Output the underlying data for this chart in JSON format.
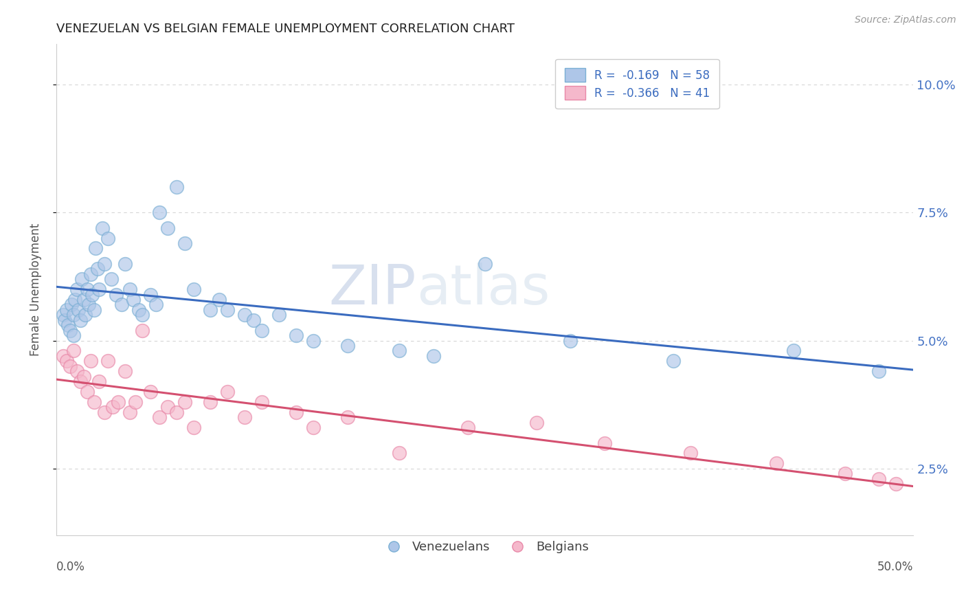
{
  "title": "VENEZUELAN VS BELGIAN FEMALE UNEMPLOYMENT CORRELATION CHART",
  "source": "Source: ZipAtlas.com",
  "ylabel": "Female Unemployment",
  "watermark_zip": "ZIP",
  "watermark_atlas": "atlas",
  "xlim": [
    0.0,
    0.5
  ],
  "ylim": [
    0.012,
    0.108
  ],
  "yticks": [
    0.025,
    0.05,
    0.075,
    0.1
  ],
  "ytick_labels": [
    "2.5%",
    "5.0%",
    "7.5%",
    "10.0%"
  ],
  "legend_blue_r": "-0.169",
  "legend_blue_n": "58",
  "legend_pink_r": "-0.366",
  "legend_pink_n": "41",
  "blue_fill": "#aec6e8",
  "pink_fill": "#f5b8cb",
  "blue_edge": "#7aafd4",
  "pink_edge": "#e888a8",
  "blue_line_color": "#3a6bbf",
  "pink_line_color": "#d45070",
  "title_color": "#222222",
  "source_color": "#999999",
  "axis_label_color": "#555555",
  "right_tick_color": "#4472c4",
  "grid_color": "#cccccc",
  "background_color": "#ffffff",
  "blue_x": [
    0.004,
    0.005,
    0.006,
    0.007,
    0.008,
    0.009,
    0.01,
    0.01,
    0.011,
    0.012,
    0.013,
    0.014,
    0.015,
    0.016,
    0.017,
    0.018,
    0.019,
    0.02,
    0.021,
    0.022,
    0.023,
    0.024,
    0.025,
    0.027,
    0.028,
    0.03,
    0.032,
    0.035,
    0.038,
    0.04,
    0.043,
    0.045,
    0.048,
    0.05,
    0.055,
    0.058,
    0.06,
    0.065,
    0.07,
    0.075,
    0.08,
    0.09,
    0.095,
    0.1,
    0.11,
    0.115,
    0.12,
    0.13,
    0.14,
    0.15,
    0.17,
    0.2,
    0.22,
    0.25,
    0.3,
    0.36,
    0.43,
    0.48
  ],
  "blue_y": [
    0.055,
    0.054,
    0.056,
    0.053,
    0.052,
    0.057,
    0.055,
    0.051,
    0.058,
    0.06,
    0.056,
    0.054,
    0.062,
    0.058,
    0.055,
    0.06,
    0.057,
    0.063,
    0.059,
    0.056,
    0.068,
    0.064,
    0.06,
    0.072,
    0.065,
    0.07,
    0.062,
    0.059,
    0.057,
    0.065,
    0.06,
    0.058,
    0.056,
    0.055,
    0.059,
    0.057,
    0.075,
    0.072,
    0.08,
    0.069,
    0.06,
    0.056,
    0.058,
    0.056,
    0.055,
    0.054,
    0.052,
    0.055,
    0.051,
    0.05,
    0.049,
    0.048,
    0.047,
    0.065,
    0.05,
    0.046,
    0.048,
    0.044
  ],
  "pink_x": [
    0.004,
    0.006,
    0.008,
    0.01,
    0.012,
    0.014,
    0.016,
    0.018,
    0.02,
    0.022,
    0.025,
    0.028,
    0.03,
    0.033,
    0.036,
    0.04,
    0.043,
    0.046,
    0.05,
    0.055,
    0.06,
    0.065,
    0.07,
    0.075,
    0.08,
    0.09,
    0.1,
    0.11,
    0.12,
    0.14,
    0.15,
    0.17,
    0.2,
    0.24,
    0.28,
    0.32,
    0.37,
    0.42,
    0.46,
    0.48,
    0.49
  ],
  "pink_y": [
    0.047,
    0.046,
    0.045,
    0.048,
    0.044,
    0.042,
    0.043,
    0.04,
    0.046,
    0.038,
    0.042,
    0.036,
    0.046,
    0.037,
    0.038,
    0.044,
    0.036,
    0.038,
    0.052,
    0.04,
    0.035,
    0.037,
    0.036,
    0.038,
    0.033,
    0.038,
    0.04,
    0.035,
    0.038,
    0.036,
    0.033,
    0.035,
    0.028,
    0.033,
    0.034,
    0.03,
    0.028,
    0.026,
    0.024,
    0.023,
    0.022
  ]
}
